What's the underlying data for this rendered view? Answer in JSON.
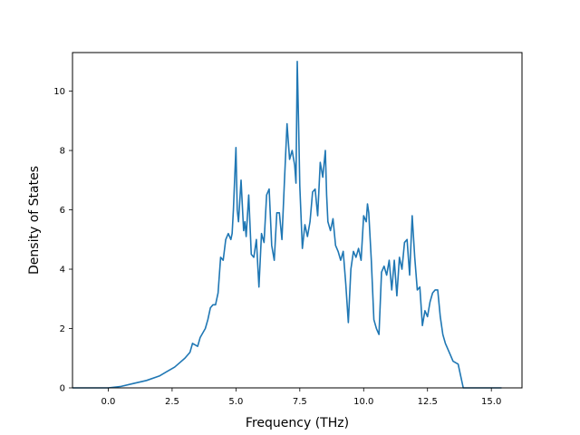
{
  "chart_data": {
    "type": "line",
    "title": "",
    "xlabel": "Frequency (THz)",
    "ylabel": "Density of States",
    "xlim": [
      -1.4,
      16.2
    ],
    "ylim": [
      0,
      11.3
    ],
    "xticks": [
      0.0,
      2.5,
      5.0,
      7.5,
      10.0,
      12.5,
      15.0
    ],
    "xtick_labels": [
      "0.0",
      "2.5",
      "5.0",
      "7.5",
      "10.0",
      "12.5",
      "15.0"
    ],
    "yticks": [
      0,
      2,
      4,
      6,
      8,
      10
    ],
    "ytick_labels": [
      "0",
      "2",
      "4",
      "6",
      "8",
      "10"
    ],
    "grid": false,
    "line_color": "#1f77b4",
    "series": [
      {
        "x": [
          -1.4,
          -0.5,
          0.0,
          0.5,
          1.0,
          1.5,
          2.0,
          2.3,
          2.6,
          2.8,
          3.0,
          3.2,
          3.3,
          3.5,
          3.6,
          3.8,
          3.9,
          4.0,
          4.1,
          4.2,
          4.3,
          4.4,
          4.5,
          4.6,
          4.7,
          4.8,
          4.85,
          4.9,
          5.0,
          5.05,
          5.1,
          5.2,
          5.3,
          5.35,
          5.4,
          5.5,
          5.6,
          5.7,
          5.8,
          5.9,
          6.0,
          6.1,
          6.2,
          6.3,
          6.4,
          6.5,
          6.6,
          6.7,
          6.8,
          6.9,
          7.0,
          7.1,
          7.2,
          7.3,
          7.35,
          7.4,
          7.45,
          7.5,
          7.6,
          7.7,
          7.8,
          7.9,
          8.0,
          8.1,
          8.2,
          8.3,
          8.4,
          8.5,
          8.55,
          8.6,
          8.7,
          8.8,
          8.9,
          9.0,
          9.1,
          9.2,
          9.3,
          9.4,
          9.5,
          9.6,
          9.7,
          9.8,
          9.9,
          10.0,
          10.1,
          10.15,
          10.2,
          10.3,
          10.4,
          10.5,
          10.6,
          10.7,
          10.8,
          10.9,
          11.0,
          11.1,
          11.2,
          11.3,
          11.4,
          11.5,
          11.6,
          11.7,
          11.8,
          11.9,
          12.0,
          12.1,
          12.2,
          12.3,
          12.4,
          12.5,
          12.6,
          12.7,
          12.8,
          12.9,
          13.0,
          13.1,
          13.2,
          13.3,
          13.4,
          13.5,
          13.6,
          13.7,
          13.8,
          13.9,
          14.0,
          14.2,
          14.5,
          15.0,
          15.4
        ],
        "y": [
          0.0,
          0.0,
          0.0,
          0.05,
          0.15,
          0.25,
          0.4,
          0.55,
          0.7,
          0.85,
          1.0,
          1.2,
          1.5,
          1.4,
          1.7,
          2.0,
          2.3,
          2.7,
          2.8,
          2.8,
          3.2,
          4.4,
          4.3,
          5.0,
          5.2,
          5.0,
          5.2,
          6.0,
          8.1,
          6.0,
          5.6,
          7.0,
          5.3,
          5.6,
          5.1,
          6.5,
          4.5,
          4.4,
          5.0,
          3.4,
          5.2,
          4.9,
          6.5,
          6.7,
          4.8,
          4.3,
          5.9,
          5.9,
          5.0,
          7.0,
          8.9,
          7.7,
          8.0,
          7.5,
          6.9,
          11.0,
          9.0,
          6.8,
          4.7,
          5.5,
          5.1,
          5.6,
          6.6,
          6.7,
          5.8,
          7.6,
          7.1,
          8.0,
          6.5,
          5.6,
          5.3,
          5.7,
          4.8,
          4.6,
          4.3,
          4.6,
          3.5,
          2.2,
          4.0,
          4.6,
          4.4,
          4.7,
          4.3,
          5.8,
          5.6,
          6.2,
          5.9,
          4.3,
          2.3,
          2.0,
          1.8,
          3.9,
          4.1,
          3.8,
          4.3,
          3.3,
          4.3,
          3.1,
          4.4,
          4.0,
          4.9,
          5.0,
          3.8,
          5.8,
          4.4,
          3.3,
          3.4,
          2.1,
          2.6,
          2.4,
          2.9,
          3.2,
          3.3,
          3.3,
          2.4,
          1.8,
          1.5,
          1.3,
          1.1,
          0.9,
          0.85,
          0.8,
          0.4,
          0.0,
          0.0,
          0.0,
          0.0,
          0.0,
          0.0
        ]
      }
    ]
  }
}
